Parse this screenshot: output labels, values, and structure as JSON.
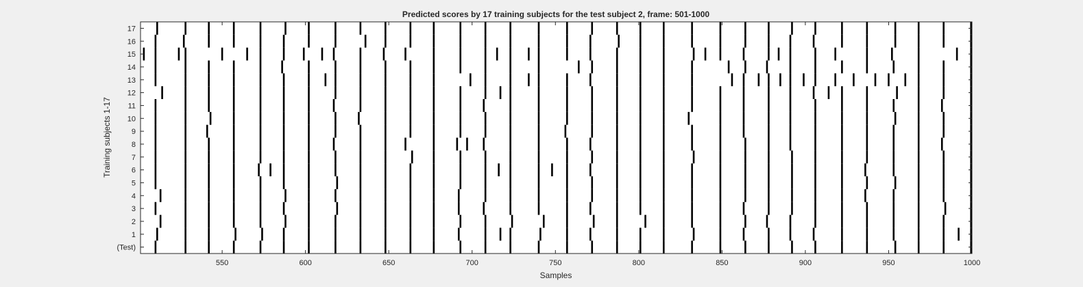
{
  "chart_data": {
    "type": "heatmap",
    "title": "Predicted scores by 17 training subjects for the test subject 2, frame: 501-1000",
    "xlabel": "Samples",
    "ylabel": "Training subjects 1-17",
    "xlim": [
      501,
      1000
    ],
    "xticks": [
      550,
      600,
      650,
      700,
      750,
      800,
      850,
      900,
      950,
      1000
    ],
    "rows": [
      "(Test)",
      "1",
      "2",
      "3",
      "4",
      "5",
      "6",
      "7",
      "8",
      "9",
      "10",
      "11",
      "12",
      "13",
      "14",
      "15",
      "16",
      "17"
    ],
    "colors": {
      "background": "#ffffff",
      "mark": "#000000",
      "figure": "#f0f0f0"
    },
    "common_events": [
      510,
      528,
      542,
      557,
      573,
      587,
      602,
      618,
      633,
      648,
      663,
      677,
      693,
      708,
      723,
      740,
      757,
      772,
      787,
      801,
      815,
      832,
      849,
      864,
      878,
      892,
      906,
      922,
      937,
      954,
      968,
      983,
      1000
    ],
    "series": [
      {
        "name": "(Test)",
        "events": [
          510,
          528,
          542,
          557,
          573,
          587,
          602,
          618,
          633,
          648,
          663,
          677,
          693,
          708,
          723,
          740,
          757,
          772,
          787,
          801,
          815,
          832,
          849,
          864,
          878,
          892,
          906,
          922,
          937,
          954,
          968,
          983,
          1000
        ]
      },
      {
        "name": "1",
        "events": [
          511,
          528,
          542,
          558,
          574,
          587,
          602,
          618,
          633,
          648,
          663,
          677,
          692,
          708,
          717,
          723,
          741,
          757,
          771,
          787,
          801,
          815,
          833,
          849,
          863,
          878,
          891,
          905,
          922,
          937,
          953,
          968,
          983,
          992,
          1000
        ]
      },
      {
        "name": "2",
        "events": [
          513,
          528,
          542,
          557,
          573,
          588,
          602,
          618,
          633,
          648,
          663,
          677,
          693,
          708,
          724,
          743,
          757,
          773,
          787,
          804,
          815,
          832,
          849,
          864,
          877,
          891,
          906,
          922,
          937,
          953,
          968,
          983,
          1000
        ]
      },
      {
        "name": "3",
        "events": [
          510,
          528,
          542,
          557,
          573,
          587,
          602,
          619,
          633,
          648,
          663,
          677,
          692,
          707,
          723,
          740,
          757,
          771,
          787,
          801,
          815,
          832,
          849,
          863,
          878,
          892,
          906,
          922,
          937,
          953,
          968,
          984,
          1000
        ]
      },
      {
        "name": "4",
        "events": [
          513,
          528,
          542,
          557,
          573,
          588,
          602,
          618,
          633,
          648,
          663,
          677,
          692,
          708,
          723,
          740,
          757,
          772,
          787,
          801,
          815,
          832,
          849,
          864,
          878,
          892,
          906,
          922,
          936,
          953,
          968,
          983,
          1000
        ]
      },
      {
        "name": "5",
        "events": [
          510,
          528,
          542,
          557,
          573,
          587,
          602,
          619,
          633,
          648,
          663,
          677,
          693,
          708,
          723,
          740,
          757,
          772,
          787,
          801,
          815,
          832,
          849,
          864,
          878,
          892,
          906,
          922,
          937,
          954,
          968,
          983,
          1000
        ]
      },
      {
        "name": "6",
        "events": [
          510,
          528,
          542,
          557,
          572,
          579,
          587,
          602,
          618,
          633,
          648,
          663,
          677,
          693,
          708,
          716,
          723,
          740,
          748,
          757,
          771,
          787,
          801,
          815,
          832,
          849,
          864,
          878,
          892,
          906,
          922,
          936,
          953,
          968,
          983,
          1000
        ]
      },
      {
        "name": "7",
        "events": [
          510,
          528,
          542,
          557,
          573,
          587,
          602,
          618,
          633,
          648,
          664,
          677,
          693,
          708,
          723,
          740,
          757,
          772,
          787,
          801,
          815,
          833,
          849,
          864,
          878,
          892,
          906,
          922,
          937,
          953,
          968,
          983,
          1000
        ]
      },
      {
        "name": "8",
        "events": [
          510,
          528,
          542,
          557,
          573,
          587,
          602,
          617,
          633,
          648,
          660,
          677,
          691,
          697,
          707,
          723,
          740,
          757,
          771,
          787,
          801,
          815,
          832,
          849,
          864,
          878,
          891,
          906,
          922,
          937,
          953,
          968,
          982,
          1000
        ]
      },
      {
        "name": "9",
        "events": [
          510,
          528,
          541,
          557,
          573,
          587,
          602,
          618,
          633,
          648,
          663,
          677,
          693,
          708,
          723,
          740,
          756,
          772,
          787,
          801,
          815,
          832,
          849,
          863,
          878,
          891,
          906,
          922,
          937,
          953,
          968,
          983,
          1000
        ]
      },
      {
        "name": "10",
        "events": [
          510,
          528,
          543,
          557,
          573,
          587,
          602,
          618,
          632,
          648,
          663,
          677,
          693,
          708,
          723,
          740,
          757,
          772,
          787,
          801,
          815,
          830,
          849,
          863,
          878,
          891,
          906,
          922,
          937,
          954,
          968,
          983,
          1000
        ]
      },
      {
        "name": "11",
        "events": [
          510,
          528,
          542,
          557,
          573,
          587,
          602,
          617,
          633,
          648,
          663,
          677,
          693,
          707,
          723,
          740,
          757,
          772,
          787,
          801,
          815,
          832,
          849,
          863,
          878,
          891,
          906,
          922,
          937,
          953,
          968,
          982,
          1000
        ]
      },
      {
        "name": "12",
        "events": [
          514,
          528,
          542,
          557,
          573,
          587,
          602,
          618,
          633,
          648,
          663,
          677,
          693,
          708,
          717,
          723,
          740,
          757,
          772,
          787,
          801,
          815,
          832,
          849,
          863,
          878,
          891,
          905,
          914,
          922,
          937,
          955,
          968,
          983,
          1000
        ]
      },
      {
        "name": "13",
        "events": [
          510,
          528,
          542,
          557,
          573,
          587,
          602,
          612,
          618,
          633,
          648,
          663,
          677,
          699,
          708,
          723,
          734,
          740,
          757,
          771,
          787,
          801,
          815,
          832,
          856,
          863,
          872,
          878,
          885,
          891,
          899,
          906,
          918,
          929,
          942,
          950,
          960,
          968,
          983,
          1000
        ]
      },
      {
        "name": "14",
        "events": [
          510,
          528,
          542,
          557,
          573,
          586,
          602,
          618,
          633,
          648,
          663,
          677,
          693,
          708,
          723,
          740,
          764,
          772,
          787,
          801,
          815,
          832,
          854,
          864,
          877,
          891,
          906,
          922,
          937,
          953,
          968,
          983,
          1000
        ]
      },
      {
        "name": "15",
        "events": [
          503,
          510,
          524,
          528,
          550,
          565,
          573,
          587,
          599,
          610,
          617,
          633,
          647,
          660,
          677,
          693,
          708,
          715,
          723,
          734,
          740,
          757,
          771,
          787,
          801,
          815,
          833,
          840,
          849,
          863,
          878,
          884,
          891,
          906,
          918,
          937,
          952,
          968,
          991,
          1000
        ]
      },
      {
        "name": "16",
        "events": [
          510,
          527,
          542,
          557,
          573,
          587,
          602,
          618,
          636,
          648,
          663,
          677,
          693,
          708,
          723,
          740,
          757,
          771,
          788,
          801,
          815,
          832,
          849,
          864,
          878,
          891,
          905,
          922,
          937,
          954,
          968,
          983,
          1000
        ]
      },
      {
        "name": "17",
        "events": [
          511,
          528,
          542,
          557,
          573,
          588,
          602,
          618,
          633,
          648,
          663,
          677,
          693,
          708,
          723,
          740,
          757,
          772,
          787,
          801,
          815,
          832,
          849,
          864,
          878,
          892,
          906,
          922,
          937,
          954,
          968,
          983,
          1000
        ]
      }
    ]
  }
}
